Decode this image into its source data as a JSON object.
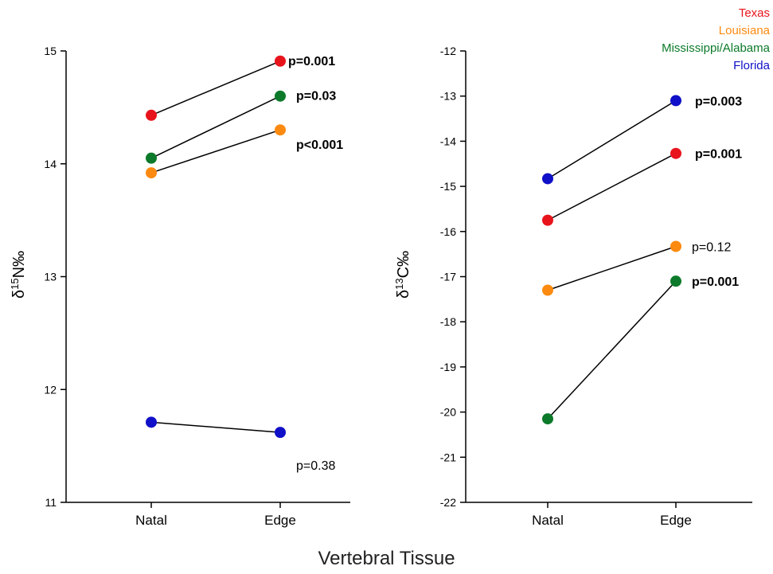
{
  "legend": {
    "texas": {
      "label": "Texas",
      "color": "#e8141c"
    },
    "louisiana": {
      "label": "Louisiana",
      "color": "#fc8a10"
    },
    "ms_al": {
      "label": "Mississippi/Alabama",
      "color": "#0c7a2a"
    },
    "florida": {
      "label": "Florida",
      "color": "#1010c8"
    }
  },
  "xtitle": "Vertebral Tissue",
  "chart_data": [
    {
      "type": "line",
      "ylabel_base": "δ",
      "ylabel_sup": "15",
      "ylabel_rest": "N‰",
      "categories": [
        "Natal",
        "Edge"
      ],
      "ylim": [
        11,
        15
      ],
      "yticks": [
        "11",
        "12",
        "13",
        "14",
        "15"
      ],
      "series": [
        {
          "name": "Texas",
          "color": "#e8141c",
          "values": [
            14.43,
            14.91
          ],
          "pvalue": "p=0.001",
          "bold": true
        },
        {
          "name": "Mississippi/Alabama",
          "color": "#0c7a2a",
          "values": [
            14.05,
            14.6
          ],
          "pvalue": "p=0.03",
          "bold": true
        },
        {
          "name": "Louisiana",
          "color": "#fc8a10",
          "values": [
            13.92,
            14.3
          ],
          "pvalue": "p<0.001",
          "bold": true
        },
        {
          "name": "Florida",
          "color": "#1010c8",
          "values": [
            11.71,
            11.62
          ],
          "pvalue": "p=0.38",
          "bold": false
        }
      ]
    },
    {
      "type": "line",
      "ylabel_base": "δ",
      "ylabel_sup": "13",
      "ylabel_rest": "C‰",
      "categories": [
        "Natal",
        "Edge"
      ],
      "ylim": [
        -22,
        -12
      ],
      "yticks": [
        "-22",
        "-21",
        "-20",
        "-19",
        "-18",
        "-17",
        "-16",
        "-15",
        "-14",
        "-13",
        "-12"
      ],
      "series": [
        {
          "name": "Florida",
          "color": "#1010c8",
          "values": [
            -14.83,
            -13.1
          ],
          "pvalue": "p=0.003",
          "bold": true
        },
        {
          "name": "Texas",
          "color": "#e8141c",
          "values": [
            -15.75,
            -14.27
          ],
          "pvalue": "p=0.001",
          "bold": true
        },
        {
          "name": "Louisiana",
          "color": "#fc8a10",
          "values": [
            -17.3,
            -16.33
          ],
          "pvalue": "p=0.12",
          "bold": false
        },
        {
          "name": "Mississippi/Alabama",
          "color": "#0c7a2a",
          "values": [
            -20.15,
            -17.1
          ],
          "pvalue": "p=0.001",
          "bold": true
        }
      ]
    }
  ]
}
